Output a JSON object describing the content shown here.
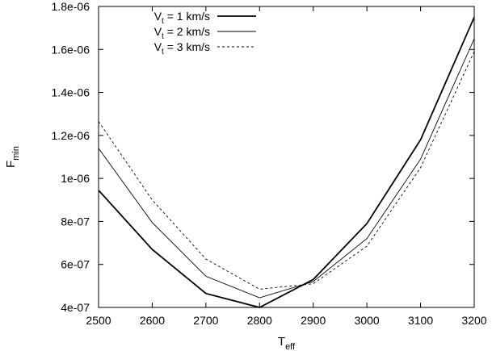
{
  "chart_data": {
    "type": "line",
    "xlabel": {
      "main": "T",
      "sub": "eff"
    },
    "ylabel": {
      "main": "F",
      "sub": "min"
    },
    "xlim": [
      2500,
      3200
    ],
    "ylim": [
      4e-07,
      1.8e-06
    ],
    "x_ticks": [
      2500,
      2600,
      2700,
      2800,
      2900,
      3000,
      3100,
      3200
    ],
    "y_ticks": [
      4e-07,
      6e-07,
      8e-07,
      1e-06,
      1.2e-06,
      1.4e-06,
      1.6e-06,
      1.8e-06
    ],
    "x_tick_labels": [
      "2500",
      "2600",
      "2700",
      "2800",
      "2900",
      "3000",
      "3100",
      "3200"
    ],
    "y_tick_labels": [
      "4e-07",
      "6e-07",
      "8e-07",
      "1e-06",
      "1.2e-06",
      "1.4e-06",
      "1.6e-06",
      "1.8e-06"
    ],
    "grid": false,
    "legend_position": "top-center",
    "x": [
      2500,
      2600,
      2700,
      2800,
      2900,
      3000,
      3100,
      3200
    ],
    "series": [
      {
        "name": "V_t = 1 km/s",
        "label_main": "V",
        "label_sub": "t",
        "label_rest": " = 1 km/s",
        "style": "thick-solid",
        "values": [
          9.45e-07,
          6.7e-07,
          4.65e-07,
          4e-07,
          5.3e-07,
          7.9e-07,
          1.18e-06,
          1.75e-06
        ]
      },
      {
        "name": "V_t = 2 km/s",
        "label_main": "V",
        "label_sub": "t",
        "label_rest": " = 2 km/s",
        "style": "thin-solid",
        "values": [
          1.14e-06,
          7.95e-07,
          5.45e-07,
          4.45e-07,
          5.2e-07,
          7.2e-07,
          1.09e-06,
          1.65e-06
        ]
      },
      {
        "name": "V_t = 3 km/s",
        "label_main": "V",
        "label_sub": "t",
        "label_rest": " = 3 km/s",
        "style": "dashed",
        "values": [
          1.265e-06,
          9e-07,
          6.25e-07,
          4.85e-07,
          5.1e-07,
          6.85e-07,
          1.05e-06,
          1.59e-06
        ]
      }
    ]
  }
}
